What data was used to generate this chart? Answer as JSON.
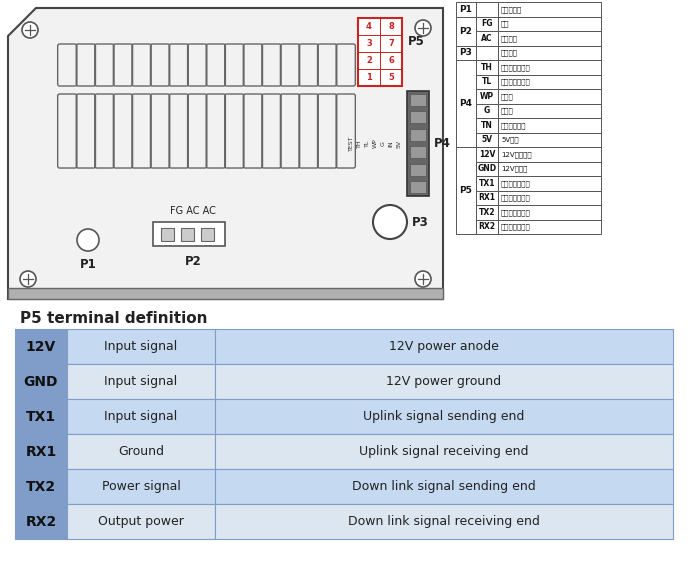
{
  "bg_color": "#ffffff",
  "table_title": "P5 terminal definition",
  "table_rows": [
    {
      "pin": "12V",
      "col2": "Input signal",
      "col3": "12V power anode"
    },
    {
      "pin": "GND",
      "col2": "Input signal",
      "col3": "12V power ground"
    },
    {
      "pin": "TX1",
      "col2": "Input signal",
      "col3": "Uplink signal sending end"
    },
    {
      "pin": "RX1",
      "col2": "Ground",
      "col3": "Uplink signal receiving end"
    },
    {
      "pin": "TX2",
      "col2": "Power signal",
      "col3": "Down link signal sending end"
    },
    {
      "pin": "RX2",
      "col2": "Output power",
      "col3": "Down link signal receiving end"
    }
  ],
  "table_row_color_odd": "#c5d9f1",
  "table_row_color_even": "#dce6f1",
  "table_border_color": "#7f9dc8",
  "pin_col_color": "#7f9dc8",
  "side_p_rows": [
    {
      "p": "P1",
      "subs": [
        {
          "code": "",
          "desc": "高压指示灯"
        }
      ]
    },
    {
      "p": "P2",
      "subs": [
        {
          "code": "FG",
          "desc": "接地"
        },
        {
          "code": "AC",
          "desc": "交流输入"
        }
      ]
    },
    {
      "p": "P3",
      "subs": [
        {
          "code": "",
          "desc": "测试按鈕"
        }
      ]
    },
    {
      "p": "P4",
      "subs": [
        {
          "code": "TH",
          "desc": "高电平控制输入"
        },
        {
          "code": "TL",
          "desc": "低电平控制输入"
        },
        {
          "code": "WP",
          "desc": "水保护"
        },
        {
          "code": "G",
          "desc": "控制地"
        },
        {
          "code": "TN",
          "desc": "功率控制输入"
        },
        {
          "code": "5V",
          "desc": "5V输出"
        }
      ]
    },
    {
      "p": "P5",
      "subs": [
        {
          "code": "12V",
          "desc": "12V电源正极"
        },
        {
          "code": "GND",
          "desc": "12V电源地"
        },
        {
          "code": "TX1",
          "desc": "上行信号发送端"
        },
        {
          "code": "RX1",
          "desc": "上行信号接收端"
        },
        {
          "code": "TX2",
          "desc": "下行信号发送端"
        },
        {
          "code": "RX2",
          "desc": "下行信号接收端"
        }
      ]
    }
  ]
}
